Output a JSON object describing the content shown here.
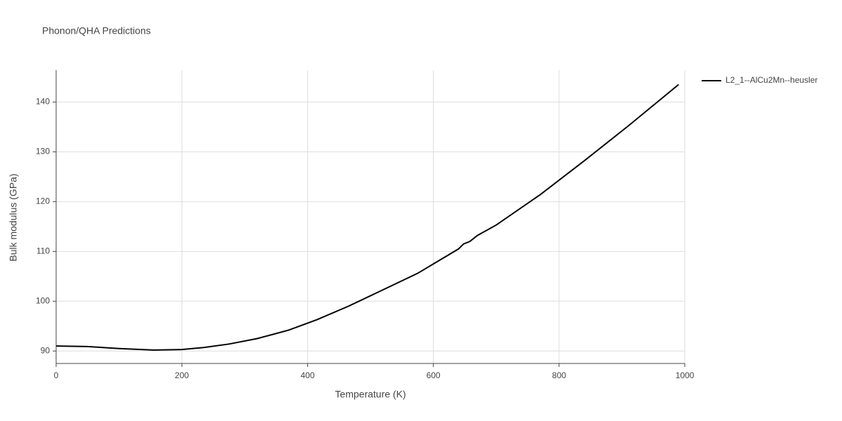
{
  "chart_data": {
    "type": "line",
    "title": "Phonon/QHA Predictions",
    "x_label": "Temperature (K)",
    "y_label": "Bulk modulus (GPa)",
    "x": [
      0,
      50,
      100,
      155,
      200,
      235,
      275,
      320,
      370,
      415,
      465,
      520,
      575,
      640,
      648,
      658,
      670,
      700,
      770,
      840,
      910,
      990
    ],
    "series": [
      {
        "name": "L2_1--AlCu2Mn--heusler",
        "color": "#000000",
        "values": [
          91.0,
          90.9,
          90.5,
          90.2,
          90.3,
          90.7,
          91.4,
          92.5,
          94.2,
          96.3,
          99.0,
          102.3,
          105.6,
          110.5,
          111.5,
          112.0,
          113.2,
          115.3,
          121.4,
          128.2,
          135.2,
          143.5
        ]
      }
    ],
    "xlim": [
      0,
      1000
    ],
    "xticks": [
      0,
      200,
      400,
      600,
      800,
      1000
    ],
    "ylim": [
      87.5,
      146.4
    ],
    "yticks": [
      90,
      100,
      110,
      120,
      130,
      140
    ],
    "grid": true,
    "legend": "right"
  }
}
